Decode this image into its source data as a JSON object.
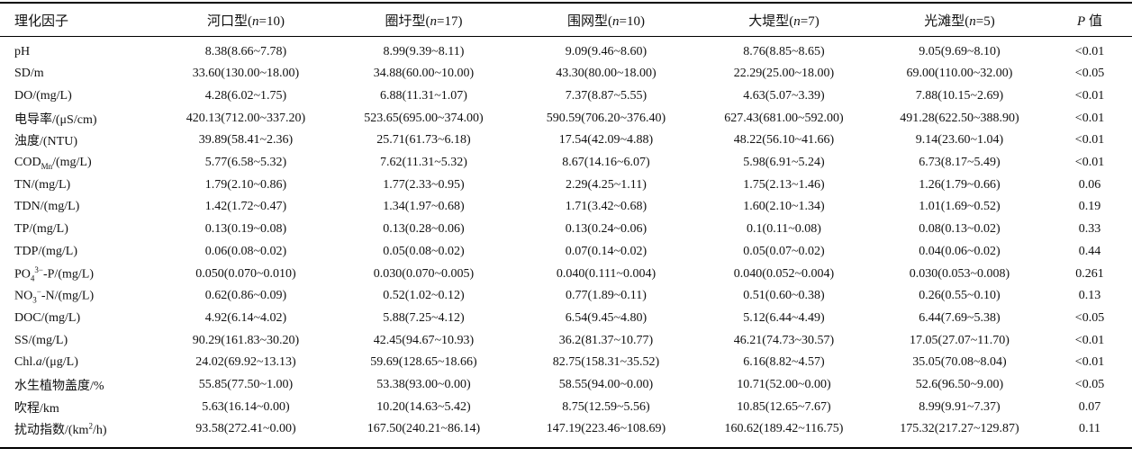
{
  "table": {
    "headers": [
      "理化因子",
      "河口型(n=10)",
      "圈圩型(n=17)",
      "围网型(n=10)",
      "大堤型(n=7)",
      "光滩型(n=5)",
      "P 值"
    ],
    "rows": [
      {
        "factor": "pH",
        "values": [
          "8.38(8.66~7.78)",
          "8.99(9.39~8.11)",
          "9.09(9.46~8.60)",
          "8.76(8.85~8.65)",
          "9.05(9.69~8.10)"
        ],
        "p": "<0.01"
      },
      {
        "factor": "SD/m",
        "values": [
          "33.60(130.00~18.00)",
          "34.88(60.00~10.00)",
          "43.30(80.00~18.00)",
          "22.29(25.00~18.00)",
          "69.00(110.00~32.00)"
        ],
        "p": "<0.05"
      },
      {
        "factor": "DO/(mg/L)",
        "values": [
          "4.28(6.02~1.75)",
          "6.88(11.31~1.07)",
          "7.37(8.87~5.55)",
          "4.63(5.07~3.39)",
          "7.88(10.15~2.69)"
        ],
        "p": "<0.01"
      },
      {
        "factor": "电导率/(μS/cm)",
        "values": [
          "420.13(712.00~337.20)",
          "523.65(695.00~374.00)",
          "590.59(706.20~376.40)",
          "627.43(681.00~592.00)",
          "491.28(622.50~388.90)"
        ],
        "p": "<0.01"
      },
      {
        "factor": "浊度/(NTU)",
        "values": [
          "39.89(58.41~2.36)",
          "25.71(61.73~6.18)",
          "17.54(42.09~4.88)",
          "48.22(56.10~41.66)",
          "9.14(23.60~1.04)"
        ],
        "p": "<0.01"
      },
      {
        "factor": "CODMn/(mg/L)",
        "values": [
          "5.77(6.58~5.32)",
          "7.62(11.31~5.32)",
          "8.67(14.16~6.07)",
          "5.98(6.91~5.24)",
          "6.73(8.17~5.49)"
        ],
        "p": "<0.01"
      },
      {
        "factor": "TN/(mg/L)",
        "values": [
          "1.79(2.10~0.86)",
          "1.77(2.33~0.95)",
          "2.29(4.25~1.11)",
          "1.75(2.13~1.46)",
          "1.26(1.79~0.66)"
        ],
        "p": "0.06"
      },
      {
        "factor": "TDN/(mg/L)",
        "values": [
          "1.42(1.72~0.47)",
          "1.34(1.97~0.68)",
          "1.71(3.42~0.68)",
          "1.60(2.10~1.34)",
          "1.01(1.69~0.52)"
        ],
        "p": "0.19"
      },
      {
        "factor": "TP/(mg/L)",
        "values": [
          "0.13(0.19~0.08)",
          "0.13(0.28~0.06)",
          "0.13(0.24~0.06)",
          "0.1(0.11~0.08)",
          "0.08(0.13~0.02)"
        ],
        "p": "0.33"
      },
      {
        "factor": "TDP/(mg/L)",
        "values": [
          "0.06(0.08~0.02)",
          "0.05(0.08~0.02)",
          "0.07(0.14~0.02)",
          "0.05(0.07~0.02)",
          "0.04(0.06~0.02)"
        ],
        "p": "0.44"
      },
      {
        "factor": "PO43--P/(mg/L)",
        "values": [
          "0.050(0.070~0.010)",
          "0.030(0.070~0.005)",
          "0.040(0.111~0.004)",
          "0.040(0.052~0.004)",
          "0.030(0.053~0.008)"
        ],
        "p": "0.261"
      },
      {
        "factor": "NO3--N/(mg/L)",
        "values": [
          "0.62(0.86~0.09)",
          "0.52(1.02~0.12)",
          "0.77(1.89~0.11)",
          "0.51(0.60~0.38)",
          "0.26(0.55~0.10)"
        ],
        "p": "0.13"
      },
      {
        "factor": "DOC/(mg/L)",
        "values": [
          "4.92(6.14~4.02)",
          "5.88(7.25~4.12)",
          "6.54(9.45~4.80)",
          "5.12(6.44~4.49)",
          "6.44(7.69~5.38)"
        ],
        "p": "<0.05"
      },
      {
        "factor": "SS/(mg/L)",
        "values": [
          "90.29(161.83~30.20)",
          "42.45(94.67~10.93)",
          "36.2(81.37~10.77)",
          "46.21(74.73~30.57)",
          "17.05(27.07~11.70)"
        ],
        "p": "<0.01"
      },
      {
        "factor": "Chl.a/(μg/L)",
        "values": [
          "24.02(69.92~13.13)",
          "59.69(128.65~18.66)",
          "82.75(158.31~35.52)",
          "6.16(8.82~4.57)",
          "35.05(70.08~8.04)"
        ],
        "p": "<0.01"
      },
      {
        "factor": "水生植物盖度/%",
        "values": [
          "55.85(77.50~1.00)",
          "53.38(93.00~0.00)",
          "58.55(94.00~0.00)",
          "10.71(52.00~0.00)",
          "52.6(96.50~9.00)"
        ],
        "p": "<0.05"
      },
      {
        "factor": "吹程/km",
        "values": [
          "5.63(16.14~0.00)",
          "10.20(14.63~5.42)",
          "8.75(12.59~5.56)",
          "10.85(12.65~7.67)",
          "8.99(9.91~7.37)"
        ],
        "p": "0.07"
      },
      {
        "factor": "扰动指数/(km2/h)",
        "values": [
          "93.58(272.41~0.00)",
          "167.50(240.21~86.14)",
          "147.19(223.46~108.69)",
          "160.62(189.42~116.75)",
          "175.32(217.27~129.87)"
        ],
        "p": "0.11"
      }
    ]
  }
}
